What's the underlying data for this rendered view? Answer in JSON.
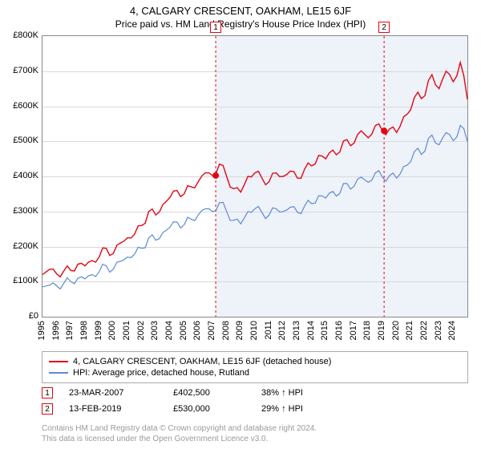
{
  "title": "4, CALGARY CRESCENT, OAKHAM, LE15 6JF",
  "subtitle": "Price paid vs. HM Land Registry's House Price Index (HPI)",
  "chart": {
    "type": "line",
    "background_color": "#ffffff",
    "grid_color": "#d9d9d9",
    "shade_color": "#eef2f9",
    "y": {
      "min": 0,
      "max": 800000,
      "tick_step": 100000,
      "labels": [
        "£0",
        "£100K",
        "£200K",
        "£300K",
        "£400K",
        "£500K",
        "£600K",
        "£700K",
        "£800K"
      ],
      "label_fontsize": 11
    },
    "x": {
      "min": 1995,
      "max": 2025,
      "tick_step": 1,
      "labels": [
        "1995",
        "1996",
        "1997",
        "1998",
        "1999",
        "2000",
        "2001",
        "2002",
        "2003",
        "2004",
        "2005",
        "2006",
        "2007",
        "2008",
        "2009",
        "2010",
        "2011",
        "2012",
        "2013",
        "2014",
        "2015",
        "2016",
        "2017",
        "2018",
        "2019",
        "2020",
        "2021",
        "2022",
        "2023",
        "2024"
      ],
      "label_fontsize": 11
    },
    "series": [
      {
        "name": "4, CALGARY CRESCENT, OAKHAM, LE15 6JF (detached house)",
        "color": "#e30613",
        "line_width": 1.4,
        "data": [
          [
            1995,
            120000
          ],
          [
            1995.5,
            135000
          ],
          [
            1996,
            122000
          ],
          [
            1996.5,
            130000
          ],
          [
            1997,
            132000
          ],
          [
            1997.5,
            150000
          ],
          [
            1998,
            145000
          ],
          [
            1998.5,
            160000
          ],
          [
            1999,
            170000
          ],
          [
            1999.5,
            195000
          ],
          [
            2000,
            180000
          ],
          [
            2000.5,
            210000
          ],
          [
            2001,
            225000
          ],
          [
            2001.5,
            235000
          ],
          [
            2002,
            260000
          ],
          [
            2002.5,
            300000
          ],
          [
            2003,
            290000
          ],
          [
            2003.5,
            320000
          ],
          [
            2004,
            340000
          ],
          [
            2004.5,
            360000
          ],
          [
            2005,
            350000
          ],
          [
            2005.5,
            370000
          ],
          [
            2006,
            385000
          ],
          [
            2006.5,
            410000
          ],
          [
            2007,
            402500
          ],
          [
            2007.5,
            435000
          ],
          [
            2008,
            400000
          ],
          [
            2008.5,
            365000
          ],
          [
            2009,
            355000
          ],
          [
            2009.5,
            400000
          ],
          [
            2010,
            410000
          ],
          [
            2010.5,
            395000
          ],
          [
            2011,
            385000
          ],
          [
            2011.5,
            410000
          ],
          [
            2012,
            400000
          ],
          [
            2012.5,
            415000
          ],
          [
            2013,
            395000
          ],
          [
            2013.5,
            420000
          ],
          [
            2014,
            430000
          ],
          [
            2014.5,
            460000
          ],
          [
            2015,
            450000
          ],
          [
            2015.5,
            475000
          ],
          [
            2016,
            470000
          ],
          [
            2016.5,
            505000
          ],
          [
            2017,
            495000
          ],
          [
            2017.5,
            530000
          ],
          [
            2018,
            510000
          ],
          [
            2018.5,
            545000
          ],
          [
            2019,
            530000
          ],
          [
            2019.5,
            535000
          ],
          [
            2020,
            525000
          ],
          [
            2020.5,
            570000
          ],
          [
            2021,
            590000
          ],
          [
            2021.5,
            640000
          ],
          [
            2022,
            630000
          ],
          [
            2022.5,
            690000
          ],
          [
            2023,
            650000
          ],
          [
            2023.5,
            700000
          ],
          [
            2024,
            670000
          ],
          [
            2024.5,
            725000
          ],
          [
            2025,
            620000
          ]
        ]
      },
      {
        "name": "HPI: Average price, detached house, Rutland",
        "color": "#5b8bd4",
        "line_width": 1.2,
        "data": [
          [
            1995,
            85000
          ],
          [
            1995.5,
            90000
          ],
          [
            1996,
            88000
          ],
          [
            1996.5,
            95000
          ],
          [
            1997,
            100000
          ],
          [
            1997.5,
            110000
          ],
          [
            1998,
            108000
          ],
          [
            1998.5,
            120000
          ],
          [
            1999,
            128000
          ],
          [
            1999.5,
            145000
          ],
          [
            2000,
            135000
          ],
          [
            2000.5,
            158000
          ],
          [
            2001,
            170000
          ],
          [
            2001.5,
            178000
          ],
          [
            2002,
            195000
          ],
          [
            2002.5,
            225000
          ],
          [
            2003,
            218000
          ],
          [
            2003.5,
            240000
          ],
          [
            2004,
            255000
          ],
          [
            2004.5,
            270000
          ],
          [
            2005,
            262000
          ],
          [
            2005.5,
            278000
          ],
          [
            2006,
            290000
          ],
          [
            2006.5,
            308000
          ],
          [
            2007,
            300000
          ],
          [
            2007.5,
            325000
          ],
          [
            2008,
            300000
          ],
          [
            2008.5,
            275000
          ],
          [
            2009,
            265000
          ],
          [
            2009.5,
            300000
          ],
          [
            2010,
            308000
          ],
          [
            2010.5,
            297000
          ],
          [
            2011,
            290000
          ],
          [
            2011.5,
            308000
          ],
          [
            2012,
            300000
          ],
          [
            2012.5,
            312000
          ],
          [
            2013,
            298000
          ],
          [
            2013.5,
            315000
          ],
          [
            2014,
            322000
          ],
          [
            2014.5,
            345000
          ],
          [
            2015,
            338000
          ],
          [
            2015.5,
            357000
          ],
          [
            2016,
            352000
          ],
          [
            2016.5,
            380000
          ],
          [
            2017,
            372000
          ],
          [
            2017.5,
            398000
          ],
          [
            2018,
            383000
          ],
          [
            2018.5,
            410000
          ],
          [
            2019,
            398000
          ],
          [
            2019.5,
            402000
          ],
          [
            2020,
            395000
          ],
          [
            2020.5,
            428000
          ],
          [
            2021,
            442000
          ],
          [
            2021.5,
            480000
          ],
          [
            2022,
            472000
          ],
          [
            2022.5,
            518000
          ],
          [
            2023,
            490000
          ],
          [
            2023.5,
            525000
          ],
          [
            2024,
            502000
          ],
          [
            2024.5,
            545000
          ],
          [
            2025,
            500000
          ]
        ]
      }
    ],
    "sale_markers": [
      {
        "n": "1",
        "year": 2007.23,
        "price": 402500,
        "color": "#e30613"
      },
      {
        "n": "2",
        "year": 2019.12,
        "price": 530000,
        "color": "#e30613"
      }
    ]
  },
  "legend": {
    "items": [
      {
        "color": "#e30613",
        "label": "4, CALGARY CRESCENT, OAKHAM, LE15 6JF (detached house)"
      },
      {
        "color": "#5b8bd4",
        "label": "HPI: Average price, detached house, Rutland"
      }
    ]
  },
  "sales": [
    {
      "n": "1",
      "color": "#e30613",
      "date": "23-MAR-2007",
      "price": "£402,500",
      "delta": "38% ↑ HPI"
    },
    {
      "n": "2",
      "color": "#e30613",
      "date": "13-FEB-2019",
      "price": "£530,000",
      "delta": "29% ↑ HPI"
    }
  ],
  "attribution": {
    "line1": "Contains HM Land Registry data © Crown copyright and database right 2024.",
    "line2": "This data is licensed under the Open Government Licence v3.0."
  }
}
